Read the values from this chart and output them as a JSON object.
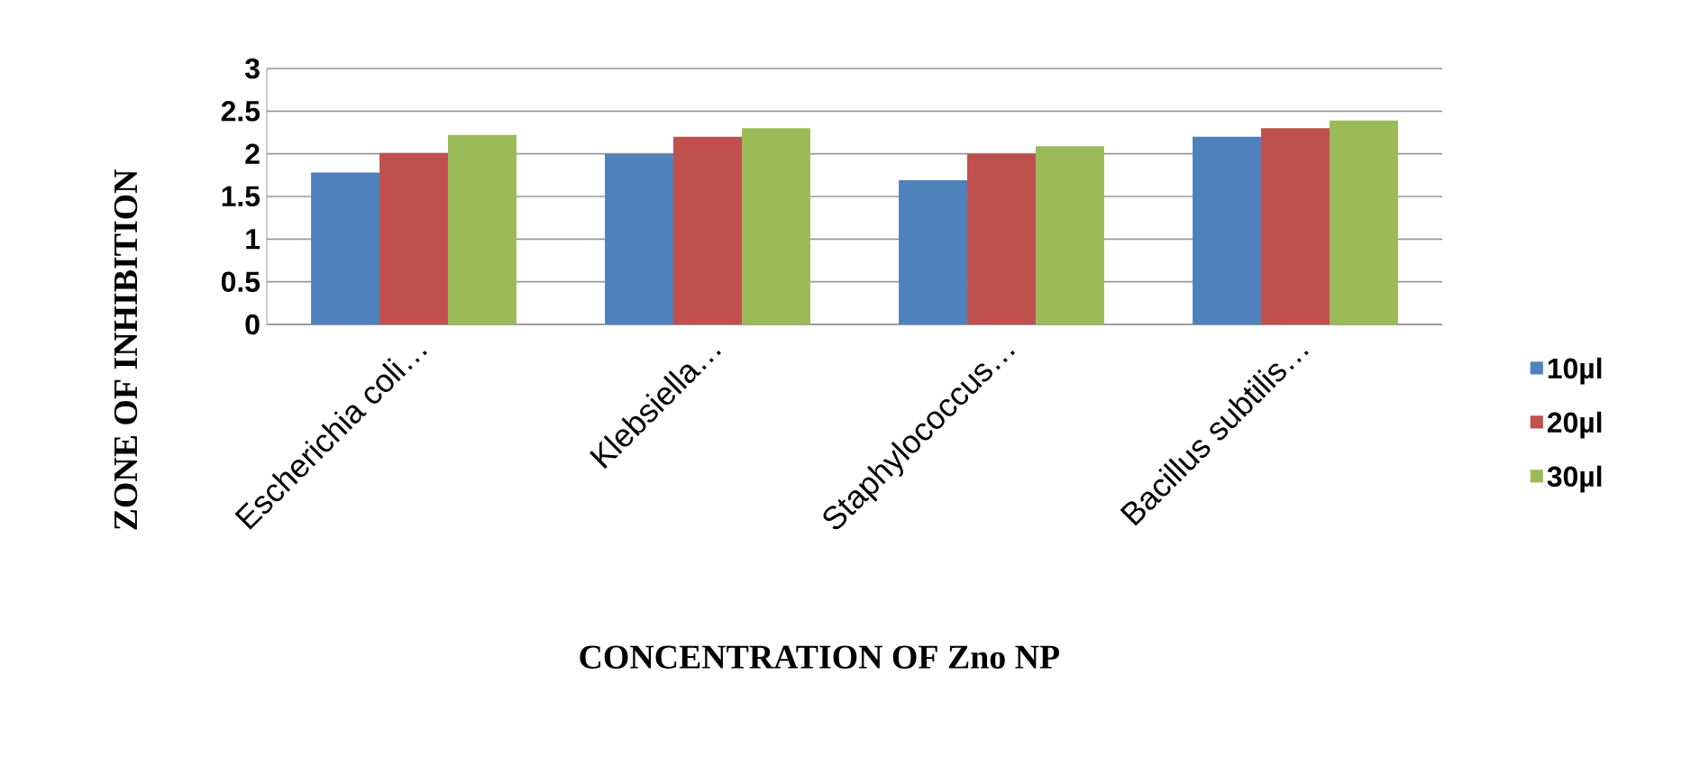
{
  "chart_data": {
    "type": "bar",
    "xlabel": "CONCENTRATION  OF Zno NP",
    "ylabel": "ZONE OF INHIBITION",
    "categories": [
      "Escherichia coli…",
      "Klebsiella…",
      "Staphylococcus…",
      "Bacillus subtilis…"
    ],
    "series": [
      {
        "name": "10µl",
        "color": "#4f81bd",
        "values": [
          1.78,
          2.0,
          1.69,
          2.2
        ]
      },
      {
        "name": "20µl",
        "color": "#c0504d",
        "values": [
          2.01,
          2.2,
          2.0,
          2.3
        ]
      },
      {
        "name": "30µl",
        "color": "#9bbb59",
        "values": [
          2.22,
          2.3,
          2.09,
          2.39
        ]
      }
    ],
    "ylim": [
      0,
      3
    ],
    "yticks": [
      0,
      0.5,
      1,
      1.5,
      2,
      2.5,
      3
    ],
    "grid": "y",
    "legend": "right"
  }
}
